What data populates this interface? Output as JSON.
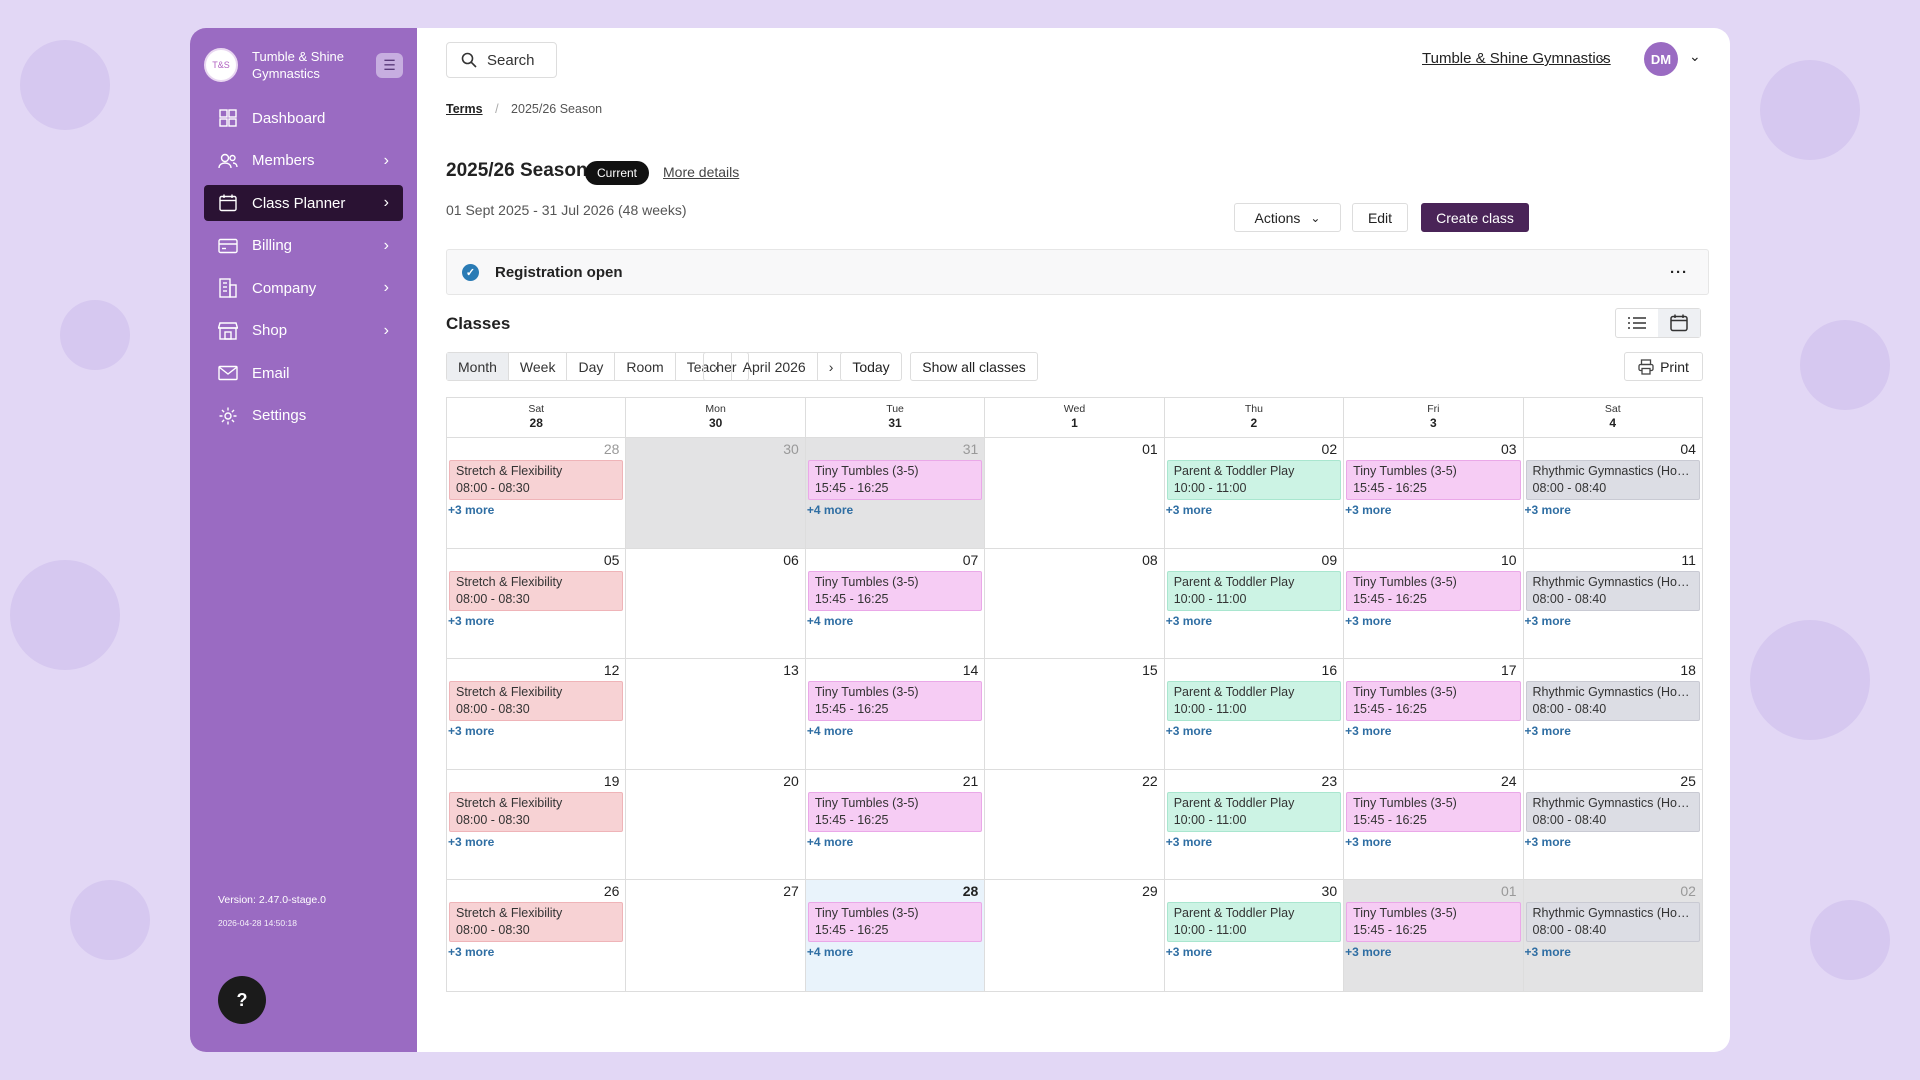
{
  "brand": {
    "name": "Tumble & Shine Gymnastics",
    "logo_text": "T&S"
  },
  "nav": [
    {
      "label": "Dashboard",
      "icon": "grid-icon",
      "chevron": false,
      "active": false
    },
    {
      "label": "Members",
      "icon": "users-icon",
      "chevron": true,
      "active": false
    },
    {
      "label": "Class Planner",
      "icon": "calendar-icon",
      "chevron": true,
      "active": true
    },
    {
      "label": "Billing",
      "icon": "card-icon",
      "chevron": true,
      "active": false
    },
    {
      "label": "Company",
      "icon": "building-icon",
      "chevron": true,
      "active": false
    },
    {
      "label": "Shop",
      "icon": "shop-icon",
      "chevron": true,
      "active": false
    },
    {
      "label": "Email",
      "icon": "mail-icon",
      "chevron": false,
      "active": false
    },
    {
      "label": "Settings",
      "icon": "gear-icon",
      "chevron": false,
      "active": false
    }
  ],
  "version": "Version: 2.47.0-stage.0",
  "build_time": "2026-04-28 14:50:18",
  "help_label": "?",
  "header": {
    "search_label": "Search",
    "org": "Tumble & Shine Gymnastics",
    "avatar": "DM"
  },
  "breadcrumb": {
    "root": "Terms",
    "current": "2025/26 Season"
  },
  "season": {
    "title": "2025/26 Season",
    "badge": "Current",
    "more": "More details",
    "dates": "01 Sept 2025 - 31 Jul 2026 (48 weeks)"
  },
  "actions": {
    "actions": "Actions",
    "edit": "Edit",
    "create": "Create class"
  },
  "registration": {
    "label": "Registration open",
    "menu": "···"
  },
  "classes_title": "Classes",
  "views": [
    "Month",
    "Week",
    "Day",
    "Room",
    "Teacher"
  ],
  "active_view": "Month",
  "month_label": "April 2026",
  "today_label": "Today",
  "show_all": "Show all classes",
  "print_label": "Print",
  "colors": {
    "sidebar": "#9a6bc2",
    "active_nav": "#2a1233",
    "primary": "#4a2458",
    "link": "#2f6ea3"
  },
  "calendar": {
    "headers": [
      {
        "day": "Sat",
        "num": "28"
      },
      {
        "day": "Mon",
        "num": "30"
      },
      {
        "day": "Tue",
        "num": "31"
      },
      {
        "day": "Wed",
        "num": "1"
      },
      {
        "day": "Thu",
        "num": "2"
      },
      {
        "day": "Fri",
        "num": "3"
      },
      {
        "day": "Sat",
        "num": "4"
      }
    ],
    "weeks": [
      [
        {
          "d": "28",
          "shade": "muted",
          "ev": {
            "t": "Stretch & Flexibility",
            "time": "08:00 - 08:30",
            "c": "red"
          },
          "more": "+3 more"
        },
        {
          "d": "30",
          "shade": "gray"
        },
        {
          "d": "31",
          "shade": "gray",
          "ev": {
            "t": "Tiny Tumbles (3-5)",
            "time": "15:45 - 16:25",
            "c": "pink"
          },
          "more": "+4 more"
        },
        {
          "d": "01"
        },
        {
          "d": "02",
          "ev": {
            "t": "Parent & Toddler Play",
            "time": "10:00 - 11:00",
            "c": "green"
          },
          "more": "+3 more"
        },
        {
          "d": "03",
          "ev": {
            "t": "Tiny Tumbles (3-5)",
            "time": "15:45 - 16:25",
            "c": "pink"
          },
          "more": "+3 more"
        },
        {
          "d": "04",
          "ev": {
            "t": "Rhythmic Gymnastics (Hoop)",
            "time": "08:00 - 08:40",
            "c": "gry"
          },
          "more": "+3 more"
        }
      ],
      [
        {
          "d": "05",
          "ev": {
            "t": "Stretch & Flexibility",
            "time": "08:00 - 08:30",
            "c": "red"
          },
          "more": "+3 more"
        },
        {
          "d": "06"
        },
        {
          "d": "07",
          "ev": {
            "t": "Tiny Tumbles (3-5)",
            "time": "15:45 - 16:25",
            "c": "pink"
          },
          "more": "+4 more"
        },
        {
          "d": "08"
        },
        {
          "d": "09",
          "ev": {
            "t": "Parent & Toddler Play",
            "time": "10:00 - 11:00",
            "c": "green"
          },
          "more": "+3 more"
        },
        {
          "d": "10",
          "ev": {
            "t": "Tiny Tumbles (3-5)",
            "time": "15:45 - 16:25",
            "c": "pink"
          },
          "more": "+3 more"
        },
        {
          "d": "11",
          "ev": {
            "t": "Rhythmic Gymnastics (Hoop)",
            "time": "08:00 - 08:40",
            "c": "gry"
          },
          "more": "+3 more"
        }
      ],
      [
        {
          "d": "12",
          "ev": {
            "t": "Stretch & Flexibility",
            "time": "08:00 - 08:30",
            "c": "red"
          },
          "more": "+3 more"
        },
        {
          "d": "13"
        },
        {
          "d": "14",
          "ev": {
            "t": "Tiny Tumbles (3-5)",
            "time": "15:45 - 16:25",
            "c": "pink"
          },
          "more": "+4 more"
        },
        {
          "d": "15"
        },
        {
          "d": "16",
          "ev": {
            "t": "Parent & Toddler Play",
            "time": "10:00 - 11:00",
            "c": "green"
          },
          "more": "+3 more"
        },
        {
          "d": "17",
          "ev": {
            "t": "Tiny Tumbles (3-5)",
            "time": "15:45 - 16:25",
            "c": "pink"
          },
          "more": "+3 more"
        },
        {
          "d": "18",
          "ev": {
            "t": "Rhythmic Gymnastics (Hoop)",
            "time": "08:00 - 08:40",
            "c": "gry"
          },
          "more": "+3 more"
        }
      ],
      [
        {
          "d": "19",
          "ev": {
            "t": "Stretch & Flexibility",
            "time": "08:00 - 08:30",
            "c": "red"
          },
          "more": "+3 more"
        },
        {
          "d": "20"
        },
        {
          "d": "21",
          "ev": {
            "t": "Tiny Tumbles (3-5)",
            "time": "15:45 - 16:25",
            "c": "pink"
          },
          "more": "+4 more"
        },
        {
          "d": "22"
        },
        {
          "d": "23",
          "ev": {
            "t": "Parent & Toddler Play",
            "time": "10:00 - 11:00",
            "c": "green"
          },
          "more": "+3 more"
        },
        {
          "d": "24",
          "ev": {
            "t": "Tiny Tumbles (3-5)",
            "time": "15:45 - 16:25",
            "c": "pink"
          },
          "more": "+3 more"
        },
        {
          "d": "25",
          "ev": {
            "t": "Rhythmic Gymnastics (Hoop)",
            "time": "08:00 - 08:40",
            "c": "gry"
          },
          "more": "+3 more"
        }
      ],
      [
        {
          "d": "26",
          "ev": {
            "t": "Stretch & Flexibility",
            "time": "08:00 - 08:30",
            "c": "red"
          },
          "more": "+3 more"
        },
        {
          "d": "27"
        },
        {
          "d": "28",
          "shade": "today",
          "ev": {
            "t": "Tiny Tumbles (3-5)",
            "time": "15:45 - 16:25",
            "c": "pink"
          },
          "more": "+4 more"
        },
        {
          "d": "29"
        },
        {
          "d": "30",
          "ev": {
            "t": "Parent & Toddler Play",
            "time": "10:00 - 11:00",
            "c": "green"
          },
          "more": "+3 more"
        },
        {
          "d": "01",
          "shade": "gray",
          "ev": {
            "t": "Tiny Tumbles (3-5)",
            "time": "15:45 - 16:25",
            "c": "pink"
          },
          "more": "+3 more"
        },
        {
          "d": "02",
          "shade": "gray",
          "ev": {
            "t": "Rhythmic Gymnastics (Hoop)",
            "time": "08:00 - 08:40",
            "c": "gry"
          },
          "more": "+3 more"
        }
      ]
    ]
  }
}
